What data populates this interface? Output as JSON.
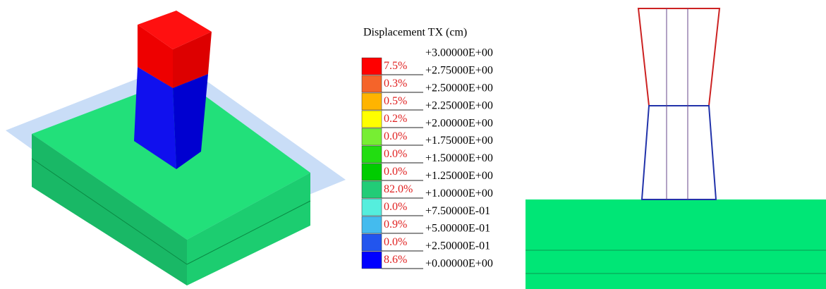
{
  "legend": {
    "title": "Displacement  TX (cm)",
    "levels": [
      "+3.00000E+00",
      "+2.75000E+00",
      "+2.50000E+00",
      "+2.25000E+00",
      "+2.00000E+00",
      "+1.75000E+00",
      "+1.50000E+00",
      "+1.25000E+00",
      "+1.00000E+00",
      "+7.50000E-01",
      "+5.00000E-01",
      "+2.50000E-01",
      "+0.00000E+00"
    ],
    "bands": [
      {
        "color": "#ff0000",
        "percent": "7.5%"
      },
      {
        "color": "#f5642a",
        "percent": "0.3%"
      },
      {
        "color": "#ffb400",
        "percent": "0.5%"
      },
      {
        "color": "#ffff00",
        "percent": "0.2%"
      },
      {
        "color": "#77ee33",
        "percent": "0.0%"
      },
      {
        "color": "#22dd11",
        "percent": "0.0%"
      },
      {
        "color": "#00cc00",
        "percent": "0.0%"
      },
      {
        "color": "#22cc77",
        "percent": "82.0%"
      },
      {
        "color": "#55eedd",
        "percent": "0.0%"
      },
      {
        "color": "#44bbee",
        "percent": "0.9%"
      },
      {
        "color": "#2255ee",
        "percent": "0.0%"
      },
      {
        "color": "#0000ff",
        "percent": "8.6%"
      }
    ]
  }
}
